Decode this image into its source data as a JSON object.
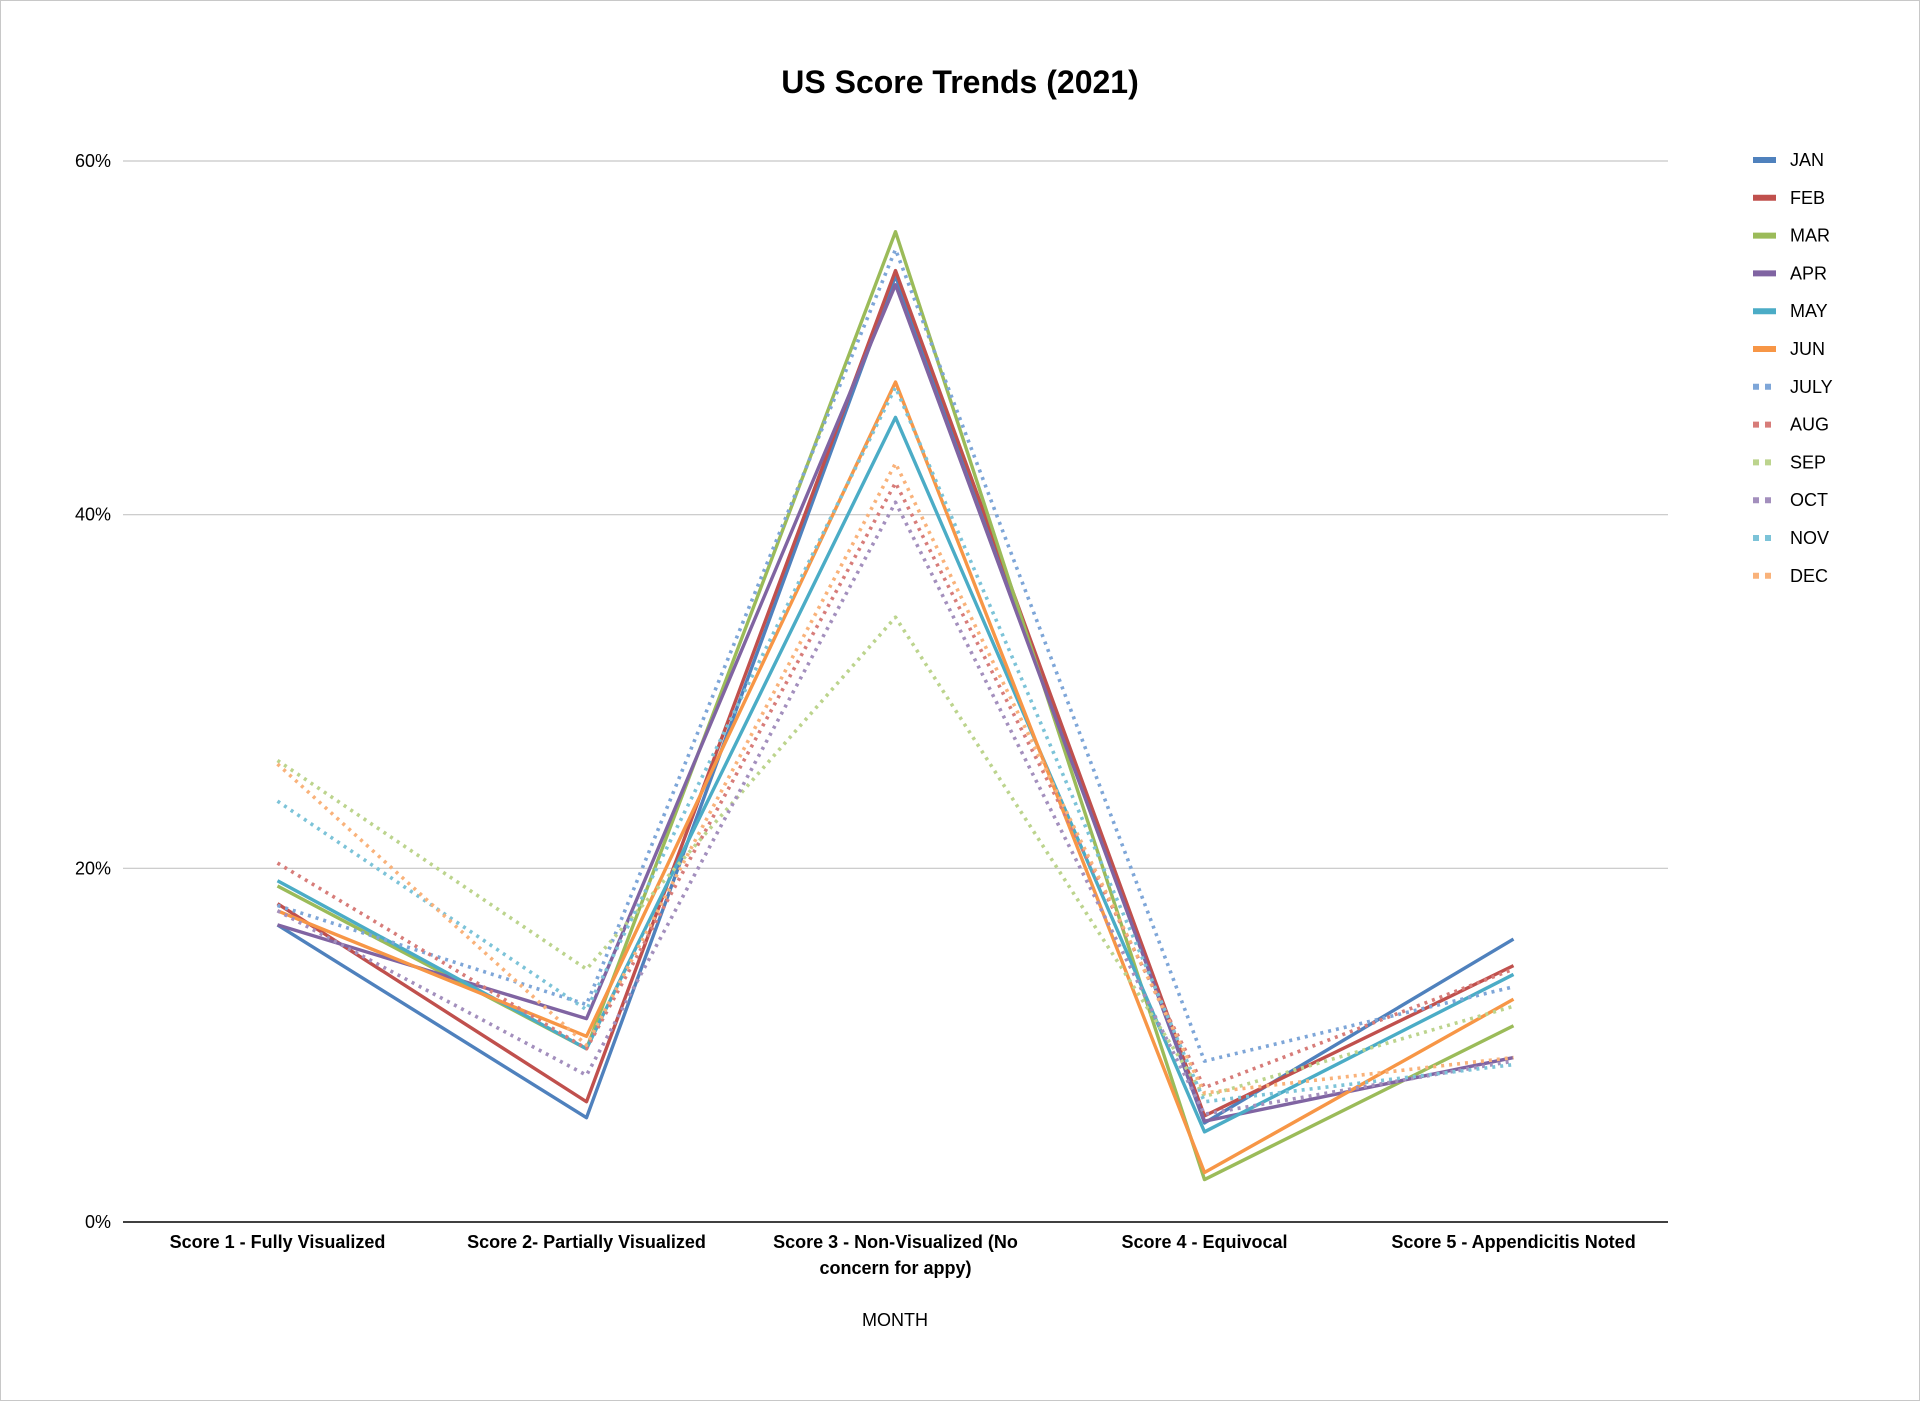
{
  "chart_data": {
    "type": "line",
    "title": "US Score Trends (2021)",
    "xlabel": "MONTH",
    "ylabel": "",
    "ylim": [
      0,
      60
    ],
    "yticks": [
      "0%",
      "20%",
      "40%",
      "60%"
    ],
    "ytick_values": [
      0,
      20,
      40,
      60
    ],
    "grid": true,
    "legend_position": "right",
    "categories": [
      "Score 1 - Fully Visualized",
      "Score 2- Partially Visualized",
      "Score 3 - Non-Visualized (No concern for appy)",
      "Score 4 - Equivocal",
      "Score 5 - Appendicitis Noted"
    ],
    "category_lines": [
      [
        "Score 1 - Fully Visualized"
      ],
      [
        "Score 2- Partially Visualized"
      ],
      [
        "Score 3 - Non-Visualized (No",
        "concern for appy)"
      ],
      [
        "Score 4 - Equivocal"
      ],
      [
        "Score 5 - Appendicitis Noted"
      ]
    ],
    "series": [
      {
        "name": "JAN",
        "color": "#4f81bd",
        "style": "solid",
        "values": [
          16.8,
          5.9,
          53.5,
          5.6,
          16.0
        ]
      },
      {
        "name": "FEB",
        "color": "#c0504d",
        "style": "solid",
        "values": [
          18.0,
          6.8,
          53.8,
          6.0,
          14.5
        ]
      },
      {
        "name": "MAR",
        "color": "#9bbb59",
        "style": "solid",
        "values": [
          19.0,
          9.8,
          56.0,
          2.4,
          11.1
        ]
      },
      {
        "name": "APR",
        "color": "#8064a2",
        "style": "solid",
        "values": [
          16.8,
          11.5,
          53.0,
          5.7,
          9.3
        ]
      },
      {
        "name": "MAY",
        "color": "#4bacc6",
        "style": "solid",
        "values": [
          19.3,
          9.8,
          45.5,
          5.1,
          14.0
        ]
      },
      {
        "name": "JUN",
        "color": "#f79646",
        "style": "solid",
        "values": [
          17.6,
          10.5,
          47.5,
          2.8,
          12.6
        ]
      },
      {
        "name": "JULY",
        "color": "#7ea6d8",
        "style": "dotted",
        "values": [
          17.9,
          12.3,
          55.0,
          9.1,
          13.3
        ]
      },
      {
        "name": "AUG",
        "color": "#d77c79",
        "style": "dotted",
        "values": [
          20.3,
          9.8,
          41.8,
          7.6,
          14.3
        ]
      },
      {
        "name": "SEP",
        "color": "#bcd48d",
        "style": "dotted",
        "values": [
          26.1,
          14.3,
          34.2,
          7.1,
          12.2
        ]
      },
      {
        "name": "OCT",
        "color": "#a38fbd",
        "style": "dotted",
        "values": [
          17.6,
          8.3,
          40.7,
          6.1,
          9.1
        ]
      },
      {
        "name": "NOV",
        "color": "#7cc3d8",
        "style": "dotted",
        "values": [
          23.8,
          12.0,
          47.2,
          6.8,
          8.9
        ]
      },
      {
        "name": "DEC",
        "color": "#f9b27a",
        "style": "dotted",
        "values": [
          25.9,
          10.0,
          42.9,
          7.3,
          9.3
        ]
      }
    ]
  }
}
